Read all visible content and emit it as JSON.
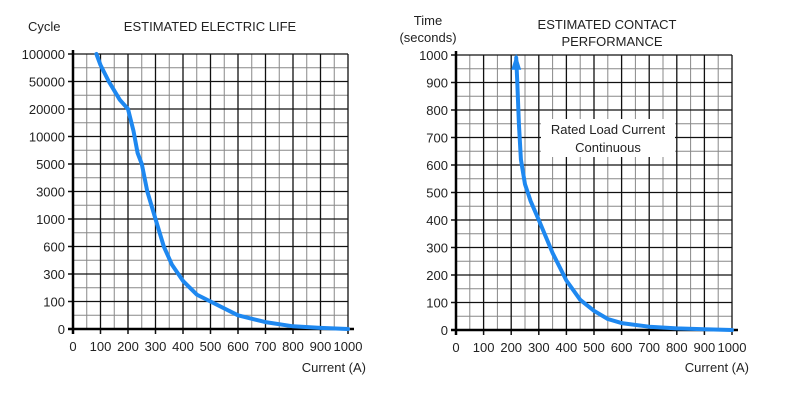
{
  "chart_data": [
    {
      "type": "line",
      "title": "ESTIMATED ELECTRIC LIFE",
      "ylabel": "Cycle",
      "xlabel": "Current (A)",
      "xlim": [
        0,
        1000
      ],
      "xticks": [
        0,
        100,
        200,
        300,
        400,
        500,
        600,
        700,
        800,
        900,
        1000
      ],
      "yscale": "categorical-equal-spacing",
      "yticks": [
        0,
        100,
        300,
        600,
        1000,
        3000,
        5000,
        10000,
        20000,
        50000,
        100000
      ],
      "grid": true,
      "line_color": "#1e88f0",
      "x": [
        85,
        100,
        130,
        170,
        200,
        220,
        235,
        250,
        270,
        300,
        330,
        360,
        400,
        450,
        500,
        600,
        700,
        800,
        900,
        1000
      ],
      "y": [
        100000,
        80000,
        50000,
        30000,
        20000,
        12000,
        7000,
        5000,
        3000,
        1000,
        600,
        400,
        250,
        150,
        100,
        50,
        25,
        10,
        4,
        0
      ]
    },
    {
      "type": "line",
      "title": "ESTIMATED CONTACT PERFORMANCE",
      "ylabel": "Time (seconds)",
      "xlabel": "Current (A)",
      "xlim": [
        0,
        1000
      ],
      "ylim": [
        0,
        1000
      ],
      "xticks": [
        0,
        100,
        200,
        300,
        400,
        500,
        600,
        700,
        800,
        900,
        1000
      ],
      "yticks": [
        0,
        100,
        200,
        300,
        400,
        500,
        600,
        700,
        800,
        900,
        1000
      ],
      "grid": true,
      "line_color": "#1e88f0",
      "annotation": [
        "Rated Load Current",
        "Continuous"
      ],
      "arrow_at_end": "top",
      "x": [
        1000,
        900,
        800,
        700,
        600,
        550,
        500,
        450,
        400,
        350,
        300,
        270,
        250,
        235,
        228,
        222,
        218
      ],
      "y": [
        0,
        3,
        6,
        12,
        25,
        40,
        70,
        110,
        180,
        280,
        400,
        470,
        530,
        620,
        750,
        900,
        990
      ]
    }
  ]
}
